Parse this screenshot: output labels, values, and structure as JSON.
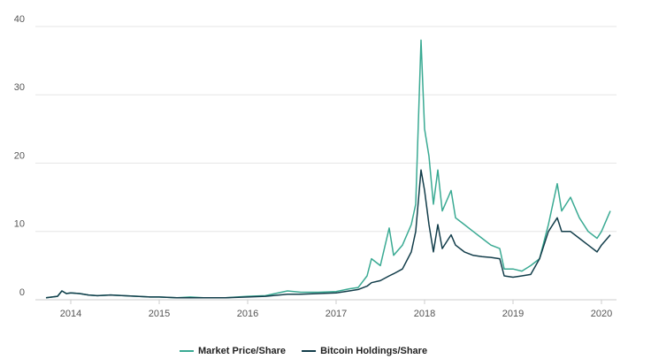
{
  "chart_data": {
    "type": "line",
    "x": [
      2013.72,
      2013.85,
      2013.9,
      2013.95,
      2014.0,
      2014.1,
      2014.2,
      2014.3,
      2014.45,
      2014.6,
      2014.75,
      2014.9,
      2015.0,
      2015.2,
      2015.35,
      2015.5,
      2015.75,
      2016.0,
      2016.2,
      2016.45,
      2016.6,
      2016.8,
      2017.0,
      2017.15,
      2017.25,
      2017.35,
      2017.4,
      2017.5,
      2017.6,
      2017.65,
      2017.75,
      2017.85,
      2017.9,
      2017.96,
      2018.0,
      2018.05,
      2018.1,
      2018.15,
      2018.2,
      2018.3,
      2018.35,
      2018.45,
      2018.55,
      2018.65,
      2018.75,
      2018.85,
      2018.9,
      2019.0,
      2019.1,
      2019.2,
      2019.3,
      2019.4,
      2019.5,
      2019.55,
      2019.65,
      2019.75,
      2019.85,
      2019.95,
      2020.0,
      2020.1
    ],
    "series": [
      {
        "name": "Market Price/Share",
        "color": "#3aaa93",
        "values": [
          0.3,
          0.5,
          1.3,
          0.9,
          1.0,
          0.9,
          0.7,
          0.6,
          0.7,
          0.6,
          0.5,
          0.4,
          0.4,
          0.3,
          0.4,
          0.3,
          0.3,
          0.5,
          0.6,
          1.3,
          1.1,
          1.1,
          1.2,
          1.6,
          1.8,
          3.5,
          6.0,
          5.0,
          10.5,
          6.5,
          8,
          11,
          14,
          38,
          25,
          21,
          14,
          19,
          13,
          16,
          12,
          11,
          10,
          9,
          8,
          7.5,
          4.5,
          4.5,
          4.2,
          5,
          6,
          11,
          17,
          13,
          15,
          12,
          10,
          9,
          10,
          13
        ]
      },
      {
        "name": "Bitcoin Holdings/Share",
        "color": "#123d4a",
        "values": [
          0.3,
          0.5,
          1.3,
          0.9,
          1.0,
          0.9,
          0.7,
          0.6,
          0.7,
          0.6,
          0.5,
          0.4,
          0.4,
          0.3,
          0.3,
          0.3,
          0.3,
          0.4,
          0.5,
          0.8,
          0.8,
          0.9,
          1.0,
          1.3,
          1.5,
          2.0,
          2.5,
          2.8,
          3.5,
          3.8,
          4.5,
          7,
          10,
          19,
          16,
          11,
          7,
          11,
          7.5,
          9.5,
          8,
          7,
          6.5,
          6.3,
          6.2,
          6,
          3.5,
          3.3,
          3.5,
          3.7,
          6,
          10,
          12,
          10,
          10,
          9,
          8,
          7,
          8,
          9.5
        ]
      }
    ],
    "xlim": [
      2013.6,
      2020.17
    ],
    "xticks": [
      2014,
      2015,
      2016,
      2017,
      2018,
      2019,
      2020
    ],
    "ylim": [
      0,
      40
    ],
    "yticks": [
      0,
      10,
      20,
      30,
      40
    ],
    "grid": true,
    "legend": "bottom"
  }
}
